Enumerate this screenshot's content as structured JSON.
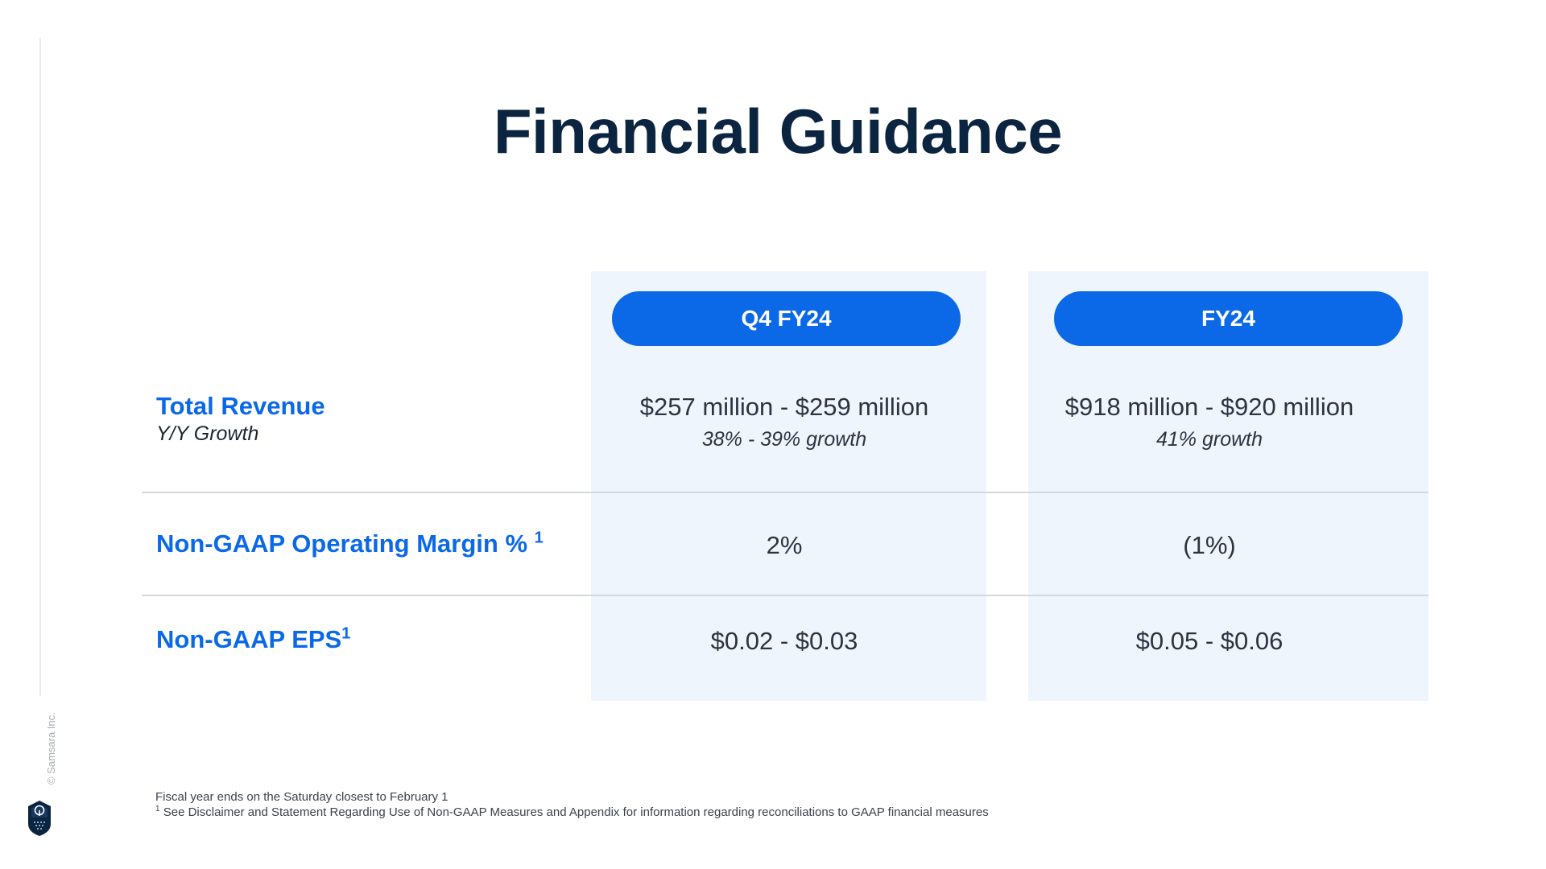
{
  "slide": {
    "title": "Financial Guidance",
    "copyright": "© Samsara Inc."
  },
  "columns": [
    {
      "label": "Q4 FY24"
    },
    {
      "label": "FY24"
    }
  ],
  "rows": {
    "revenue": {
      "label": "Total Revenue",
      "sublabel": "Y/Y Growth",
      "q4": "$257 million - $259 million",
      "q4_growth": "38% - 39% growth",
      "fy": "$918 million - $920 million",
      "fy_growth": "41% growth"
    },
    "margin": {
      "label": "Non-GAAP Operating Margin %",
      "footnote_ref": "1",
      "q4": "2%",
      "fy": "(1%)"
    },
    "eps": {
      "label": "Non-GAAP EPS",
      "footnote_ref": "1",
      "q4": "$0.02 - $0.03",
      "fy": "$0.05 - $0.06"
    }
  },
  "footnotes": {
    "line1": "Fiscal year ends on the Saturday closest to February 1",
    "line2_marker": "1",
    "line2": "See Disclaimer and Statement Regarding Use of Non-GAAP Measures and Appendix for information regarding reconciliations to GAAP financial measures"
  },
  "colors": {
    "title": "#0b2440",
    "accent_blue": "#0b69e8",
    "column_background": "#eef5fd",
    "divider": "#d4d8de"
  },
  "icons": {
    "logo": "samsara-logo-icon"
  }
}
